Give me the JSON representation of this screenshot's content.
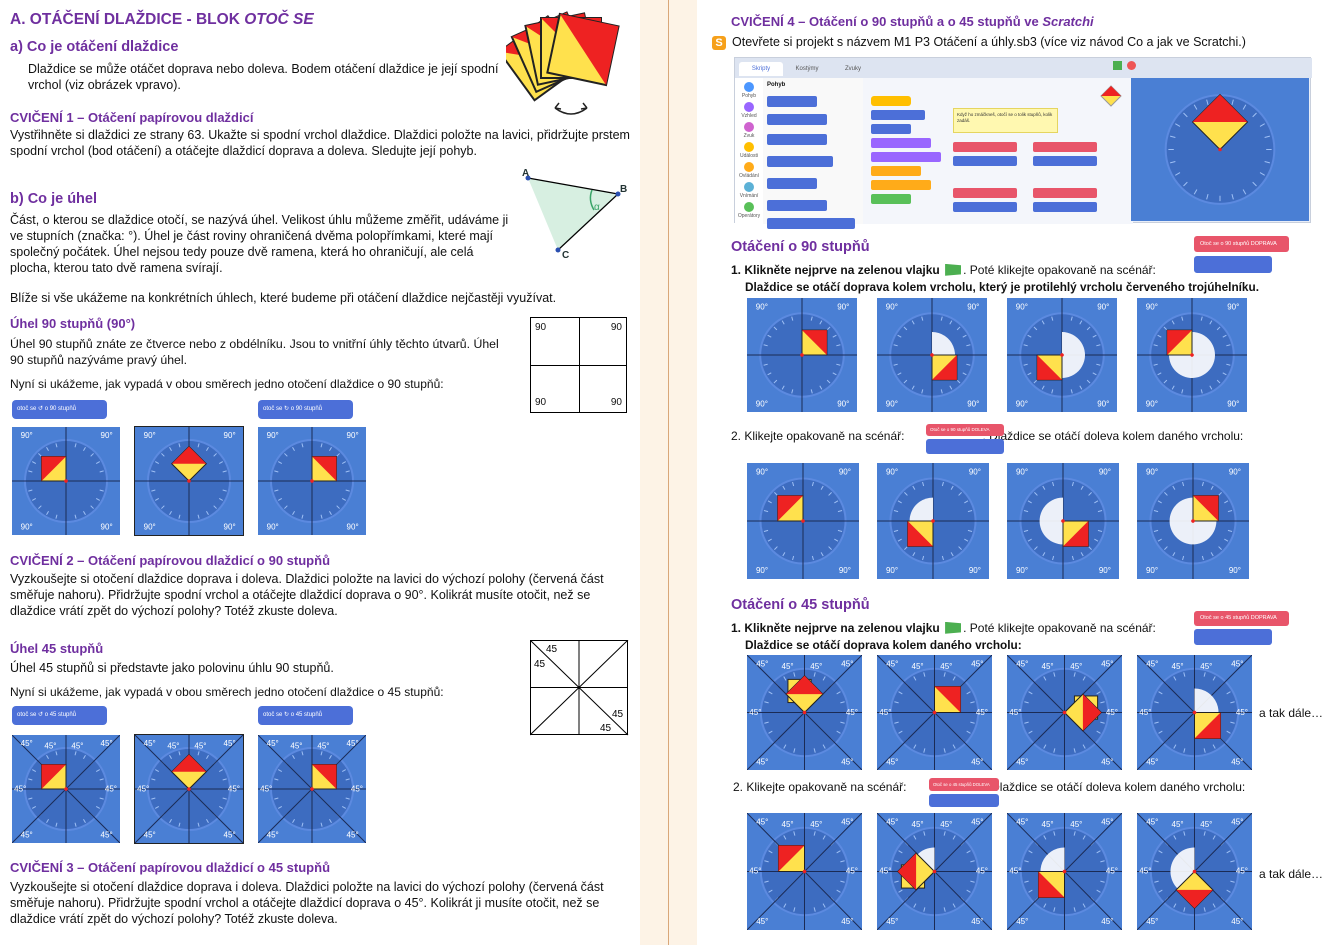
{
  "left": {
    "title_plain": "A. OTÁČENÍ DLAŽDICE - BLOK ",
    "title_italic": "OTOČ SE",
    "sec_a": "a) Co je otáčení dlaždice",
    "sec_a_text": "Dlaždice se může otáčet doprava nebo doleva. Bodem otáčení dlaždice je její spodní vrchol (viz obrázek vpravo).",
    "cv1_title": "CVIČENÍ 1 – Otáčení papírovou dlaždicí",
    "cv1_text": "Vystřihněte si dlaždici ze strany 63. Ukažte si spodní vrchol dlaždice. Dlaždici položte na lavici, přidržujte prstem spodní vrchol (bod otáčení) a otáčejte dlaždicí doprava a doleva. Sledujte její pohyb.",
    "sec_b": "b) Co je úhel",
    "sec_b_text": "Část, o kterou se dlaždice otočí, se nazývá úhel. Velikost úhlu můžeme změřit, udáváme ji ve stupních (značka: °). Úhel je část roviny ohraničená dvěma polopřímkami, které mají společný počátek. Úhel nejsou tedy pouze dvě ramena, která ho ohraničují, ale celá plocha, kterou tato dvě ramena svírají.",
    "sec_b_more": "Blíže si vše ukážeme na konkrétních úhlech, které budeme při otáčení dlaždice nejčastěji využívat.",
    "angle_labels": {
      "a": "A",
      "b": "B",
      "c": "C",
      "alpha": "α"
    },
    "u90_title": "Úhel 90 stupňů (90°)",
    "u90_text": "Úhel 90 stupňů znáte ze čtverce nebo z obdélníku. Jsou to vnitřní úhly těchto útvarů. Úhel 90 stupňů nazýváme pravý úhel.",
    "u90_show": "Nyní si ukážeme, jak vypadá v obou směrech jedno otočení dlaždice o 90 stupňů:",
    "grid90": [
      "90",
      "90",
      "90",
      "90"
    ],
    "block_left_90": "otoč se ↺ o 90 stupňů",
    "block_right_90": "otoč se ↻ o 90 stupňů",
    "deg90": "90°",
    "cv2_title": "CVIČENÍ 2 – Otáčení papírovou dlaždicí o 90 stupňů",
    "cv2_text": "Vyzkoušejte si otočení dlaždice doprava i doleva. Dlaždici položte na lavici do výchozí polohy (červená část směřuje nahoru). Přidržujte spodní vrchol a otáčejte dlaždicí doprava o 90°. Kolikrát musíte otočit, než se dlaždice vrátí zpět do výchozí polohy? Totéž zkuste doleva.",
    "u45_title": "Úhel 45 stupňů",
    "u45_text": "Úhel 45 stupňů si představte jako polovinu úhlu 90 stupňů.",
    "u45_show": "Nyní si ukážeme, jak vypadá v obou směrech jedno otočení dlaždice o 45 stupňů:",
    "grid45": [
      "45",
      "45",
      "45",
      "45"
    ],
    "block_left_45": "otoč se ↺ o 45 stupňů",
    "block_right_45": "otoč se ↻ o 45 stupňů",
    "deg45": "45°",
    "cv3_title": "CVIČENÍ 3 – Otáčení papírovou dlaždicí o 45 stupňů",
    "cv3_text": "Vyzkoušejte si otočení dlaždice doprava i doleva. Dlaždici položte na lavici do výchozí polohy (červená část směřuje nahoru). Přidržujte spodní vrchol a otáčejte dlaždicí doprava o 45°. Kolikrát ji musíte otočit, než se dlaždice vrátí zpět do výchozí polohy? Totéž zkuste doleva."
  },
  "right": {
    "cv4_title_plain": "CVIČENÍ 4 – Otáčení o 90 stupňů a o 45 stupňů ve ",
    "cv4_title_italic": "Scratchi",
    "cv4_text": "Otevřete si projekt s názvem M1 P3 Otáčení a úhly.sb3 (více viz návod Co a jak ve Scratchi.)",
    "scratch_tabs": [
      "Skripty",
      "Kostýmy",
      "Zvuky"
    ],
    "scratch_cats": [
      "Pohyb",
      "Vzhled",
      "Zvuk",
      "Události",
      "Ovládání",
      "Vnímání",
      "Operátory"
    ],
    "scratch_note": "Když ho zmáčkneš, otočí se o tolik stupňů, kolik zadáš.",
    "o90_title": "Otáčení o 90 stupňů",
    "o90_step1": "1. Klikněte nejprve na zelenou vlajku",
    "o90_step1b": ". Poté klikejte opakovaně na scénář:",
    "o90_sub1": "Dlaždice se otáčí doprava kolem vrcholu, který je protilehlý vrcholu červeného trojúhelníku.",
    "o90_step2": "2. Klikejte opakovaně na scénář:",
    "o90_sub2": ". Dlaždice se otáčí doleva kolem daného vrcholu:",
    "block_cw90_label": "Otoč se o 90 stupňů DOPRAVA",
    "block_ccw90_label": "Otoč se o 90 stupňů DOLEVA",
    "o45_title": "Otáčení o 45 stupňů",
    "o45_step1": "1. Klikněte nejprve na zelenou vlajku",
    "o45_step1b": ". Poté klikejte opakovaně na scénář:",
    "o45_sub1": "Dlaždice se otáčí doprava kolem daného vrcholu:",
    "o45_step2": "2. Klikejte opakovaně na scénář:",
    "o45_sub2": ". Dlaždice se otáčí doleva kolem daného vrcholu:",
    "block_cw45_label": "Otoč se o 45 stupňů DOPRAVA",
    "block_ccw45_label": "Otoč se o 45 stupňů DOLEVA",
    "etc": "a tak dále…",
    "deg90": "90°",
    "deg45": "45°"
  }
}
